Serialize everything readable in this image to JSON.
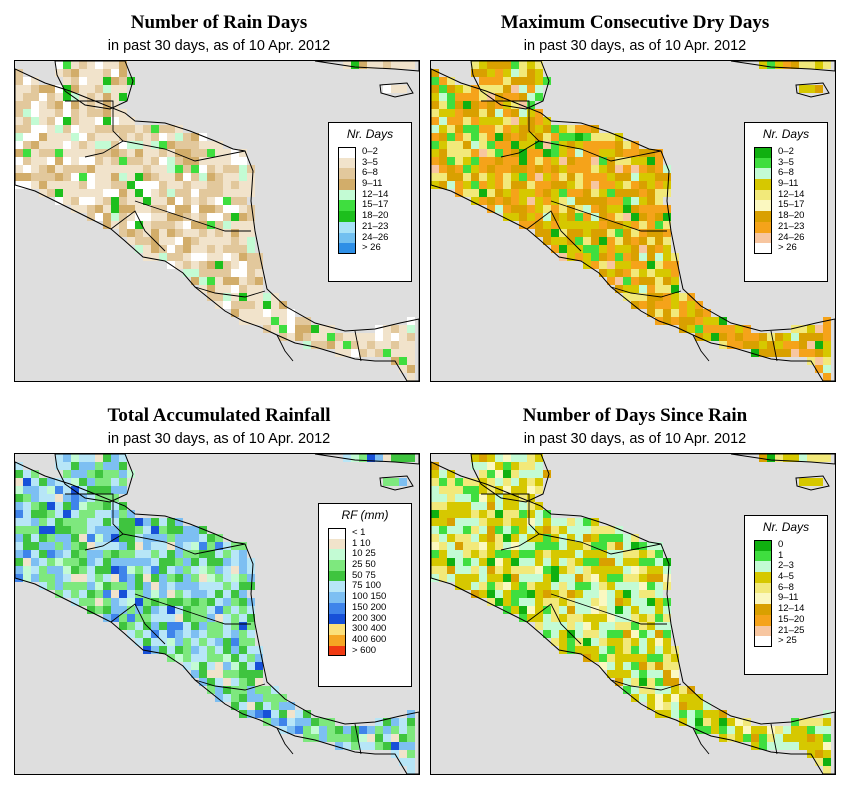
{
  "panels": [
    {
      "id": "rain_days",
      "title": "Number of Rain Days",
      "subtitle": "in past 30 days, as of  10 Apr. 2012",
      "legend_title": "Nr. Days",
      "legend": [
        {
          "label": "0–2",
          "color": "#ffffff"
        },
        {
          "label": "3–5",
          "color": "#f1e3cb"
        },
        {
          "label": "6–8",
          "color": "#e2c89c"
        },
        {
          "label": "9–11",
          "color": "#d2ad6a"
        },
        {
          "label": "12–14",
          "color": "#c3fbd4"
        },
        {
          "label": "15–17",
          "color": "#3fde3f"
        },
        {
          "label": "18–20",
          "color": "#1dbf1d"
        },
        {
          "label": "21–23",
          "color": "#a8e2f7"
        },
        {
          "label": "24–26",
          "color": "#72c0f0"
        },
        {
          "label": "> 26",
          "color": "#2e8fe6"
        }
      ]
    },
    {
      "id": "dry_days",
      "title": "Maximum Consecutive Dry Days",
      "subtitle": "in past 30 days, as of  10 Apr. 2012",
      "legend_title": "Nr. Days",
      "legend": [
        {
          "label": "0–2",
          "color": "#10b010"
        },
        {
          "label": "3–5",
          "color": "#3fde3f"
        },
        {
          "label": "6–8",
          "color": "#c3fbd4"
        },
        {
          "label": "9–11",
          "color": "#d6c800"
        },
        {
          "label": "12–14",
          "color": "#f2e97a"
        },
        {
          "label": "15–17",
          "color": "#fbf8c0"
        },
        {
          "label": "18–20",
          "color": "#d9a000"
        },
        {
          "label": "21–23",
          "color": "#f5a31a"
        },
        {
          "label": "24–26",
          "color": "#f7c6a0"
        },
        {
          "label": "> 26",
          "color": "#ffffff"
        }
      ]
    },
    {
      "id": "total_rain",
      "title": "Total Accumulated Rainfall",
      "subtitle": "in past 30 days, as of  10 Apr. 2012",
      "legend_title": "RF (mm)",
      "legend": [
        {
          "label": "< 1",
          "color": "#ffffff"
        },
        {
          "label": "1  10",
          "color": "#f1e3cb"
        },
        {
          "label": "10  25",
          "color": "#c3fbd4"
        },
        {
          "label": "25  50",
          "color": "#7ee87e"
        },
        {
          "label": "50  75",
          "color": "#3fc43f"
        },
        {
          "label": "75  100",
          "color": "#b7e6f7"
        },
        {
          "label": "100  150",
          "color": "#7dbff2"
        },
        {
          "label": "150  200",
          "color": "#3f84ea"
        },
        {
          "label": "200  300",
          "color": "#1750d8"
        },
        {
          "label": "300  400",
          "color": "#fbe07a"
        },
        {
          "label": "400  600",
          "color": "#f5a623"
        },
        {
          "label": "> 600",
          "color": "#f03a12"
        }
      ]
    },
    {
      "id": "days_since_rain",
      "title": "Number of Days Since Rain",
      "subtitle": "in past 30 days, as of  10 Apr. 2012",
      "legend_title": "Nr. Days",
      "legend": [
        {
          "label": "0",
          "color": "#10b010"
        },
        {
          "label": "1",
          "color": "#3fde3f"
        },
        {
          "label": "2–3",
          "color": "#c3fbd4"
        },
        {
          "label": "4–5",
          "color": "#d6c800"
        },
        {
          "label": "6–8",
          "color": "#f2e97a"
        },
        {
          "label": "9–11",
          "color": "#fbf8c0"
        },
        {
          "label": "12–14",
          "color": "#d9a000"
        },
        {
          "label": "15–20",
          "color": "#f5a31a"
        },
        {
          "label": "21–25",
          "color": "#f7c6a0"
        },
        {
          "label": "> 25",
          "color": "#ffffff"
        }
      ]
    }
  ]
}
